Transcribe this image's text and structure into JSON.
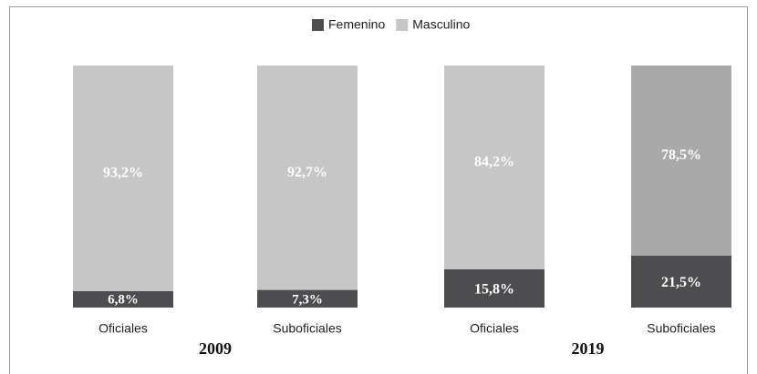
{
  "chart_data": {
    "type": "stacked_bar",
    "categories": [
      "Oficiales",
      "Suboficiales",
      "Oficiales",
      "Suboficiales"
    ],
    "groups": [
      "2009",
      "2019"
    ],
    "series": [
      {
        "name": "Femenino",
        "color": "#4d4d4f",
        "colors": [
          "#4d4d4f",
          "#4d4d4f",
          "#4d4d4f",
          "#4d4d4f"
        ],
        "values": [
          6.8,
          7.3,
          15.8,
          21.5
        ],
        "value_labels": [
          "6,8%",
          "7,3%",
          "15,8%",
          "21,5%"
        ]
      },
      {
        "name": "Masculino",
        "color": "#c6c6c6",
        "colors": [
          "#c6c6c6",
          "#c6c6c6",
          "#c6c6c6",
          "#a9a9a9"
        ],
        "values": [
          93.2,
          92.7,
          84.2,
          78.5
        ],
        "value_labels": [
          "93,2%",
          "92,7%",
          "84,2%",
          "78,5%"
        ]
      }
    ]
  }
}
